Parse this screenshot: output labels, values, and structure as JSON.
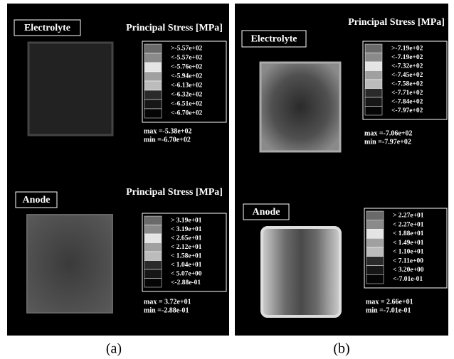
{
  "panels": [
    {
      "caption": "(a)",
      "plots": [
        {
          "label": "Electrolyte",
          "title": "Principal Stress [MPa]",
          "legend": [
            ">-5.57e+02",
            "<-5.57e+02",
            "<-5.76e+02",
            "<-5.94e+02",
            "<-6.13e+02",
            "<-6.32e+02",
            "<-6.51e+02",
            "<-6.70e+02"
          ],
          "max": "max =-5.38e+02",
          "min": "min =-6.70e+02"
        },
        {
          "label": "Anode",
          "title": "Principal Stress [MPa]",
          "legend": [
            "> 3.19e+01",
            "< 3.19e+01",
            "< 2.65e+01",
            "< 2.12e+01",
            "< 1.58e+01",
            "< 1.04e+01",
            "< 5.07e+00",
            "<-2.88e-01"
          ],
          "max": "max = 3.72e+01",
          "min": "min =-2.88e-01"
        }
      ]
    },
    {
      "caption": "(b)",
      "plots": [
        {
          "label": "Electrolyte",
          "title": "Principal Stress [MPa]",
          "legend": [
            ">-7.19e+02",
            "<-7.19e+02",
            "<-7.32e+02",
            "<-7.45e+02",
            "<-7.58e+02",
            "<-7.71e+02",
            "<-7.84e+02",
            "<-7.97e+02"
          ],
          "max": "max =-7.06e+02",
          "min": "min =-7.97e+02"
        },
        {
          "label": "Anode",
          "legend": [
            "> 2.27e+01",
            "< 2.27e+01",
            "< 1.88e+01",
            "< 1.49e+01",
            "< 1.10e+01",
            "< 7.11e+00",
            "< 3.20e+00",
            "<-7.01e-01"
          ],
          "max": "max = 2.66e+01",
          "min": "min =-7.01e-01"
        }
      ]
    }
  ]
}
